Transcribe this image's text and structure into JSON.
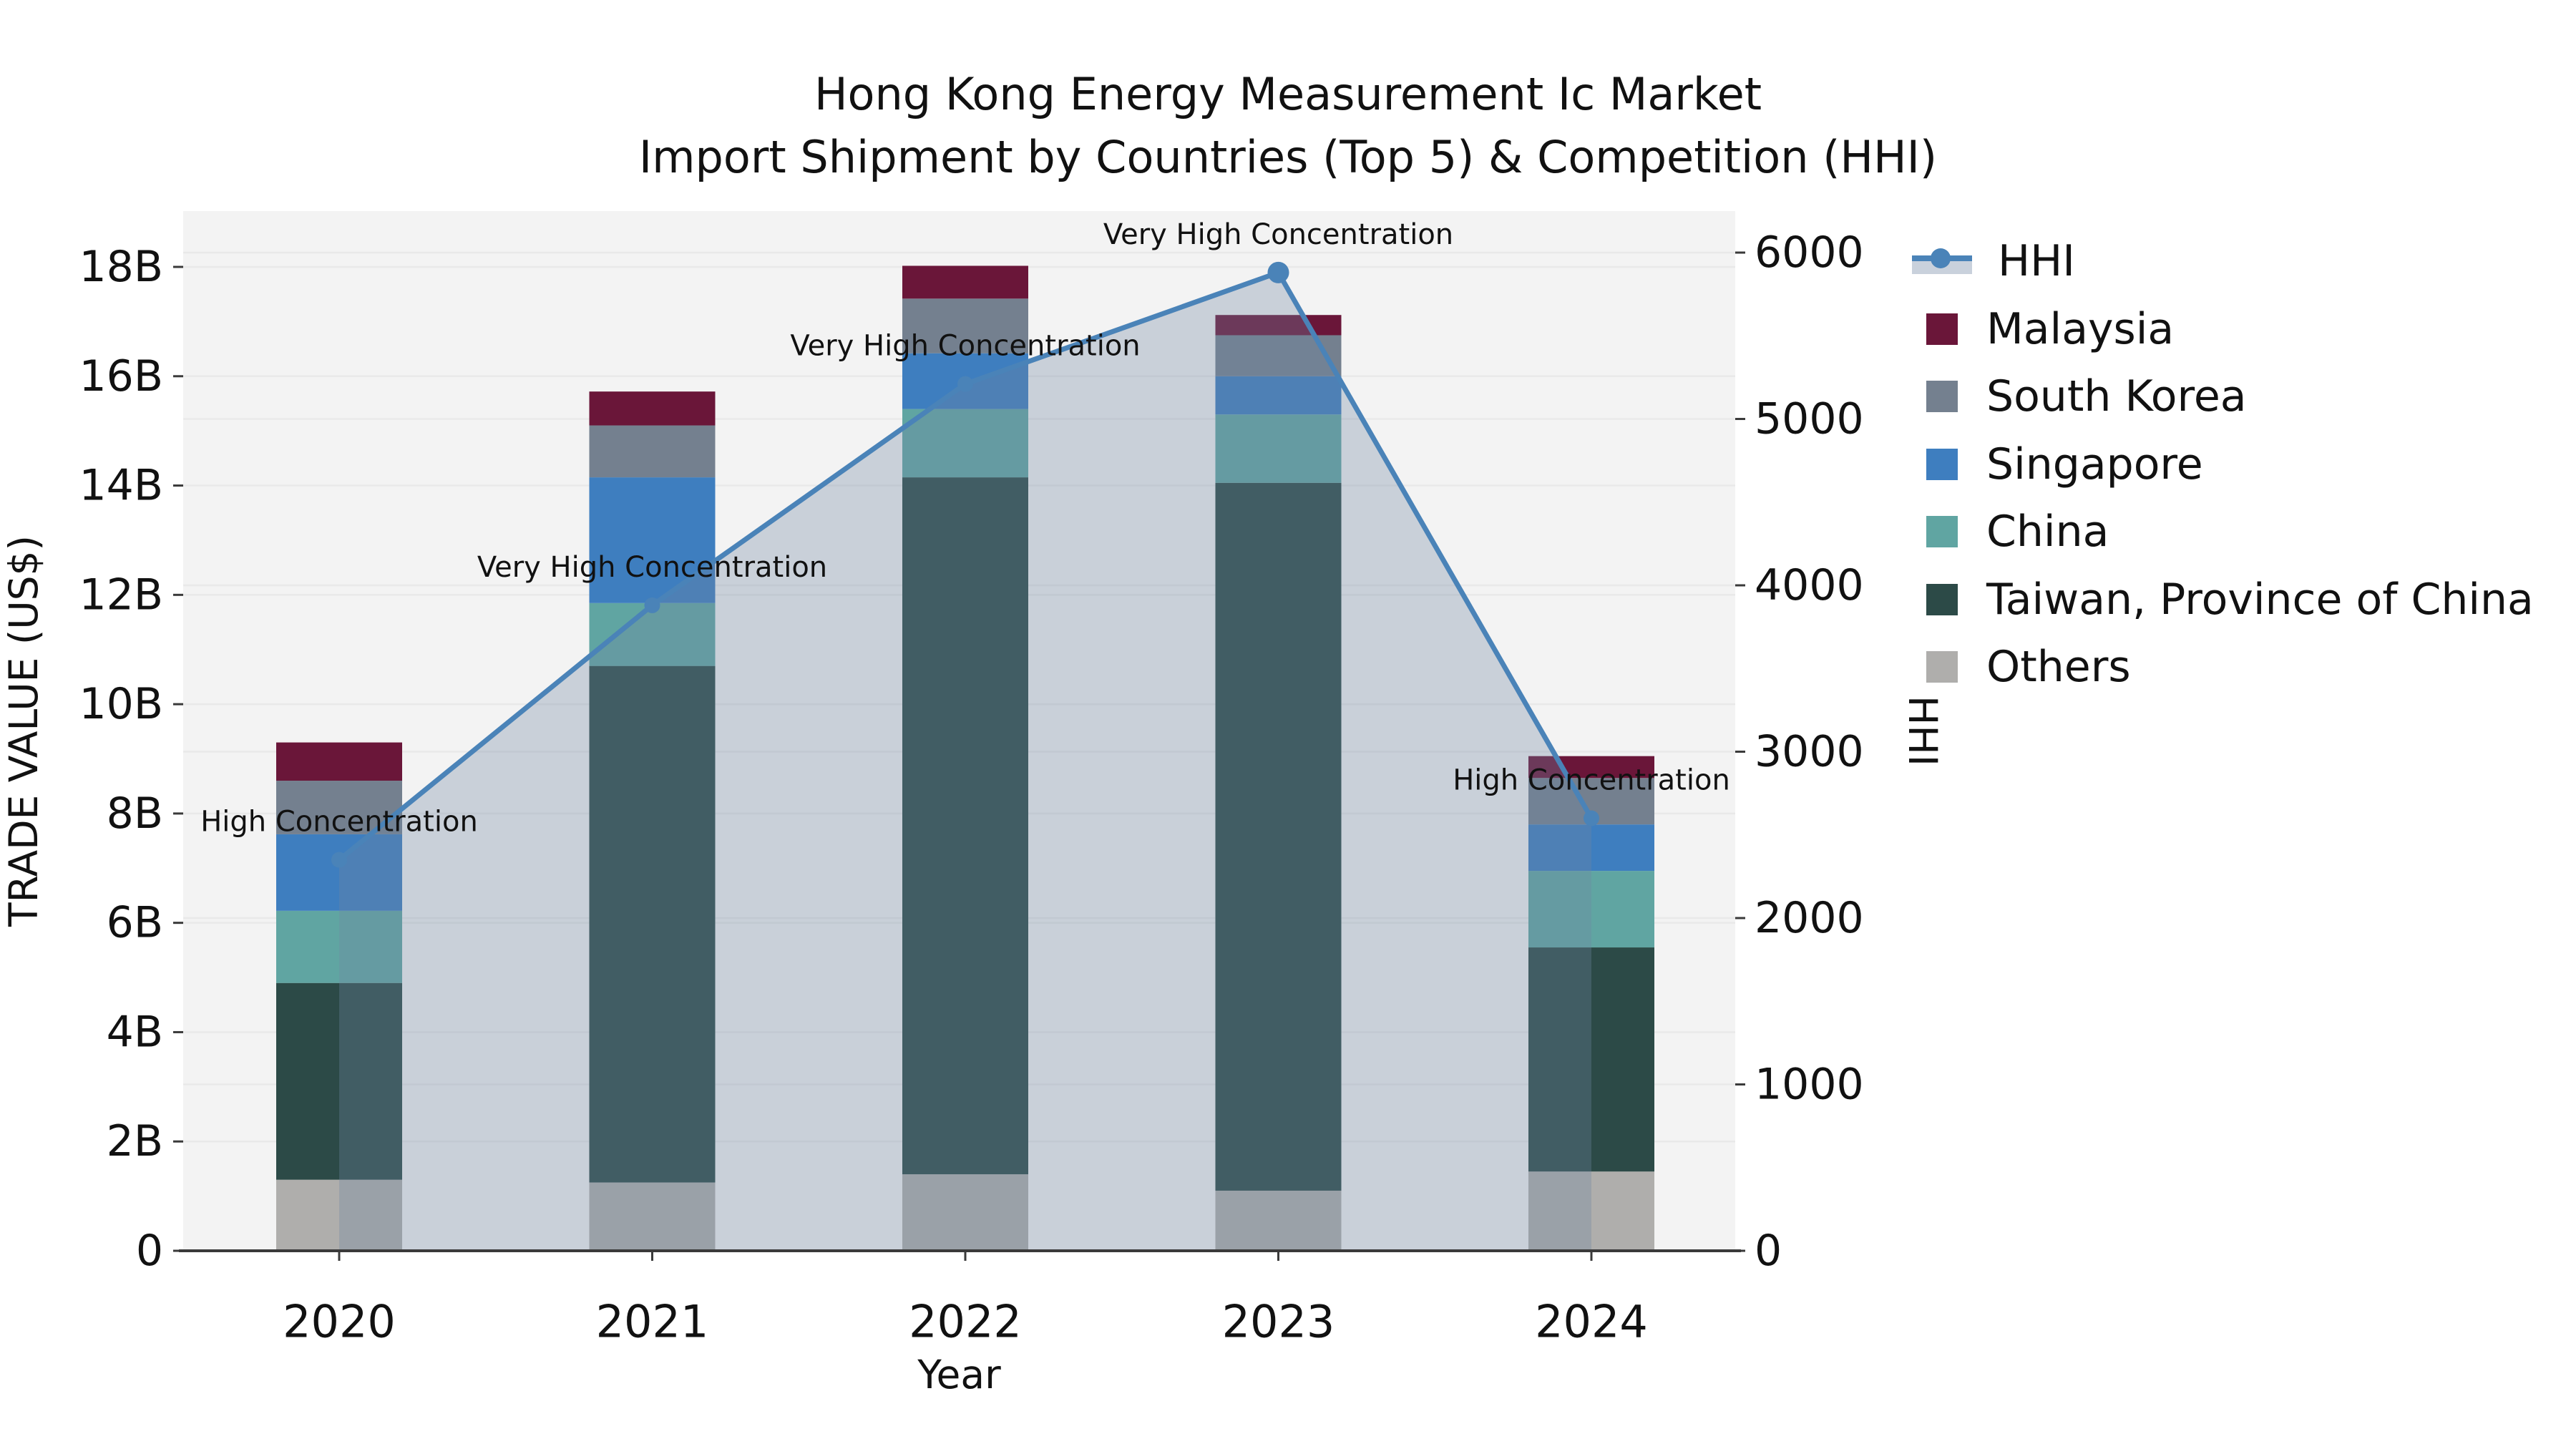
{
  "title": {
    "line1": "Hong Kong Energy Measurement Ic Market",
    "line2": "Import Shipment by Countries (Top 5) & Competition (HHI)"
  },
  "axes": {
    "left_label": "TRADE VALUE (US$)",
    "right_label": "HHI",
    "x_label": "Year",
    "left_ticks": [
      "0",
      "2B",
      "4B",
      "6B",
      "8B",
      "10B",
      "12B",
      "14B",
      "16B",
      "18B"
    ],
    "left_tick_values": [
      0,
      2,
      4,
      6,
      8,
      10,
      12,
      14,
      16,
      18
    ],
    "right_ticks": [
      "0",
      "1000",
      "2000",
      "3000",
      "4000",
      "5000",
      "6000"
    ],
    "right_tick_values": [
      0,
      1000,
      2000,
      3000,
      4000,
      5000,
      6000
    ]
  },
  "legend": {
    "items": [
      {
        "key": "hhi",
        "label": "HHI",
        "type": "line"
      },
      {
        "key": "malaysia",
        "label": "Malaysia",
        "type": "box"
      },
      {
        "key": "south_korea",
        "label": "South Korea",
        "type": "box"
      },
      {
        "key": "singapore",
        "label": "Singapore",
        "type": "box"
      },
      {
        "key": "china",
        "label": "China",
        "type": "box"
      },
      {
        "key": "taiwan",
        "label": "Taiwan, Province of China",
        "type": "box"
      },
      {
        "key": "others",
        "label": "Others",
        "type": "box"
      }
    ]
  },
  "chart_data": {
    "type": "bar",
    "subtype": "stacked-bars-with-line",
    "title": "Hong Kong Energy Measurement Ic Market — Import Shipment by Countries (Top 5) & Competition (HHI)",
    "categories": [
      "2020",
      "2021",
      "2022",
      "2023",
      "2024"
    ],
    "unit": "billion US$",
    "ylabel_left": "TRADE VALUE (US$)",
    "ylabel_right": "HHI",
    "xlabel": "Year",
    "ylim_left_B": [
      0,
      19
    ],
    "ylim_right": [
      0,
      6000
    ],
    "grid": true,
    "legend_position": "right",
    "series": [
      {
        "name": "Others",
        "key": "others",
        "values": [
          1.3,
          1.25,
          1.4,
          1.1,
          1.45
        ]
      },
      {
        "name": "Taiwan, Province of China",
        "key": "taiwan",
        "values": [
          3.6,
          9.45,
          12.75,
          12.95,
          4.1
        ]
      },
      {
        "name": "China",
        "key": "china",
        "values": [
          1.32,
          1.15,
          1.25,
          1.25,
          1.4
        ]
      },
      {
        "name": "Singapore",
        "key": "singapore",
        "values": [
          1.4,
          2.3,
          1.02,
          0.7,
          0.85
        ]
      },
      {
        "name": "South Korea",
        "key": "south_korea",
        "values": [
          0.98,
          0.95,
          1.0,
          0.75,
          0.85
        ]
      },
      {
        "name": "Malaysia",
        "key": "malaysia",
        "values": [
          0.7,
          0.62,
          0.6,
          0.37,
          0.4
        ]
      }
    ],
    "bar_totals_B": [
      9.3,
      15.72,
      18.02,
      17.12,
      9.05
    ],
    "line_series": {
      "name": "HHI",
      "key": "hhi",
      "values": [
        2350,
        3880,
        5210,
        5880,
        2600
      ]
    },
    "annotations": [
      {
        "category": "2020",
        "text": "High Concentration"
      },
      {
        "category": "2021",
        "text": "Very High Concentration"
      },
      {
        "category": "2022",
        "text": "Very High Concentration"
      },
      {
        "category": "2023",
        "text": "Very High Concentration"
      },
      {
        "category": "2024",
        "text": "High Concentration"
      }
    ],
    "colors": {
      "malaysia": "#6A1639",
      "south_korea": "#74808F",
      "singapore": "#3E7EBF",
      "china": "#60A5A2",
      "taiwan": "#2C4A47",
      "others": "#AFAEAC",
      "hhi": "#4A83B8",
      "area_fill": "#7185A3",
      "plot_bg": "#F3F3F3",
      "grid": "#E9E9E9",
      "axis": "#3A3A3A",
      "text": "#111111"
    }
  }
}
